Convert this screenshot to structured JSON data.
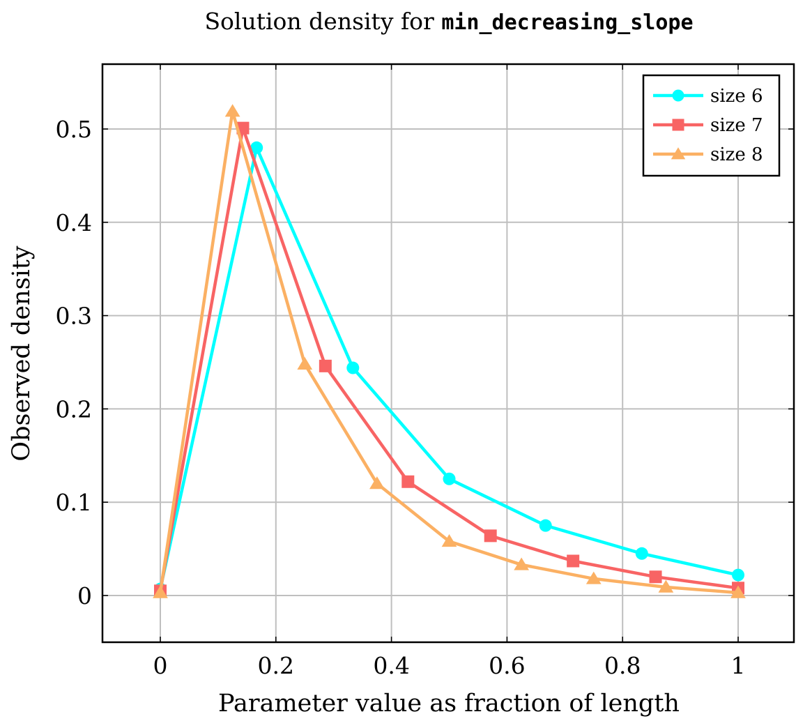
{
  "chart_data": {
    "type": "line",
    "title": {
      "prefix": "Solution density for ",
      "code": "min_decreasing_slope"
    },
    "xlabel": "Parameter value as fraction of length",
    "ylabel": "Observed density",
    "xlim": [
      -0.1,
      1.1
    ],
    "ylim": [
      -0.05,
      0.57
    ],
    "xticks": [
      0,
      0.2,
      0.4,
      0.6,
      0.8,
      1
    ],
    "xtick_labels": [
      "0",
      "0.2",
      "0.4",
      "0.6",
      "0.8",
      "1"
    ],
    "yticks": [
      0,
      0.1,
      0.2,
      0.3,
      0.4,
      0.5
    ],
    "ytick_labels": [
      "0",
      "0.1",
      "0.2",
      "0.3",
      "0.4",
      "0.5"
    ],
    "grid": true,
    "legend_position": "top-right",
    "series": [
      {
        "name": "size 6",
        "color": "#00ffff",
        "marker": "circle",
        "points": [
          [
            0,
            0.007
          ],
          [
            0.1667,
            0.48
          ],
          [
            0.3333,
            0.244
          ],
          [
            0.5,
            0.125
          ],
          [
            0.6667,
            0.075
          ],
          [
            0.8333,
            0.045
          ],
          [
            1,
            0.022
          ]
        ]
      },
      {
        "name": "size 7",
        "color": "#f86464",
        "marker": "square",
        "points": [
          [
            0,
            0.005
          ],
          [
            0.1429,
            0.501
          ],
          [
            0.2857,
            0.246
          ],
          [
            0.4286,
            0.122
          ],
          [
            0.5714,
            0.064
          ],
          [
            0.7143,
            0.037
          ],
          [
            0.8571,
            0.02
          ],
          [
            1,
            0.008
          ]
        ]
      },
      {
        "name": "size 8",
        "color": "#fbb063",
        "marker": "triangle",
        "points": [
          [
            0,
            0.003
          ],
          [
            0.125,
            0.519
          ],
          [
            0.25,
            0.248
          ],
          [
            0.375,
            0.12
          ],
          [
            0.5,
            0.058
          ],
          [
            0.625,
            0.033
          ],
          [
            0.75,
            0.018
          ],
          [
            0.875,
            0.009
          ],
          [
            1,
            0.003
          ]
        ]
      }
    ]
  }
}
